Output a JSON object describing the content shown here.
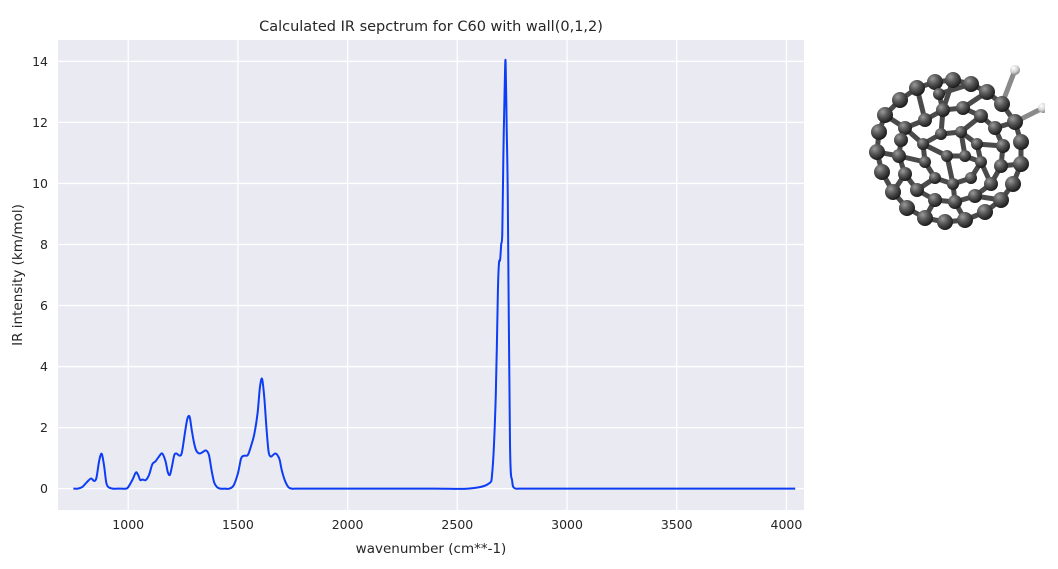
{
  "chart_data": {
    "type": "line",
    "title": "Calculated IR sepctrum for C60 with wall(0,1,2)",
    "xlabel": "wavenumber (cm**-1)",
    "ylabel": "IR intensity (km/mol)",
    "xlim": [
      680,
      4080
    ],
    "ylim": [
      -0.7,
      14.7
    ],
    "xticks": [
      1000,
      1500,
      2000,
      2500,
      3000,
      3500,
      4000
    ],
    "yticks": [
      0,
      2,
      4,
      6,
      8,
      10,
      12,
      14
    ],
    "grid": true,
    "legend": "none",
    "series": [
      {
        "color": "#0d3df5",
        "x": [
          750,
          770,
          790,
          810,
          830,
          845,
          855,
          865,
          872,
          880,
          890,
          900,
          910,
          930,
          950,
          970,
          990,
          1000,
          1020,
          1035,
          1045,
          1055,
          1065,
          1080,
          1095,
          1110,
          1125,
          1140,
          1155,
          1170,
          1180,
          1190,
          1200,
          1210,
          1220,
          1235,
          1245,
          1260,
          1270,
          1280,
          1290,
          1300,
          1310,
          1325,
          1340,
          1355,
          1368,
          1380,
          1392,
          1405,
          1420,
          1440,
          1460,
          1480,
          1500,
          1515,
          1530,
          1545,
          1560,
          1575,
          1590,
          1600,
          1610,
          1620,
          1630,
          1640,
          1650,
          1660,
          1670,
          1680,
          1690,
          1700,
          1715,
          1730,
          1745,
          1760,
          1780,
          1800,
          1850,
          1900,
          2000,
          2200,
          2400,
          2550,
          2640,
          2660,
          2675,
          2685,
          2690,
          2695,
          2700,
          2705,
          2710,
          2716,
          2720,
          2725,
          2730,
          2740,
          2750,
          2760,
          2780,
          2800,
          3000,
          3500,
          4040
        ],
        "y": [
          0,
          0,
          0.05,
          0.2,
          0.33,
          0.25,
          0.35,
          0.8,
          1.05,
          1.13,
          0.75,
          0.2,
          0.05,
          0,
          0,
          0,
          0,
          0.05,
          0.3,
          0.53,
          0.45,
          0.28,
          0.3,
          0.28,
          0.45,
          0.8,
          0.9,
          1.05,
          1.15,
          0.9,
          0.55,
          0.45,
          0.75,
          1.1,
          1.15,
          1.08,
          1.2,
          1.9,
          2.3,
          2.35,
          1.9,
          1.5,
          1.25,
          1.15,
          1.2,
          1.25,
          1.1,
          0.6,
          0.2,
          0.05,
          0,
          0,
          0,
          0.1,
          0.5,
          1.0,
          1.08,
          1.1,
          1.4,
          1.8,
          2.5,
          3.3,
          3.6,
          3.0,
          2.0,
          1.2,
          1.05,
          1.1,
          1.15,
          1.1,
          0.95,
          0.6,
          0.25,
          0.05,
          0,
          0,
          0,
          0,
          0,
          0,
          0,
          0,
          0,
          0,
          0.15,
          0.6,
          3.0,
          6.5,
          7.4,
          7.5,
          8.0,
          8.4,
          11.0,
          13.2,
          14.0,
          11.8,
          9.5,
          1.5,
          0.25,
          0.02,
          0,
          0,
          0,
          0,
          0
        ]
      }
    ]
  }
}
